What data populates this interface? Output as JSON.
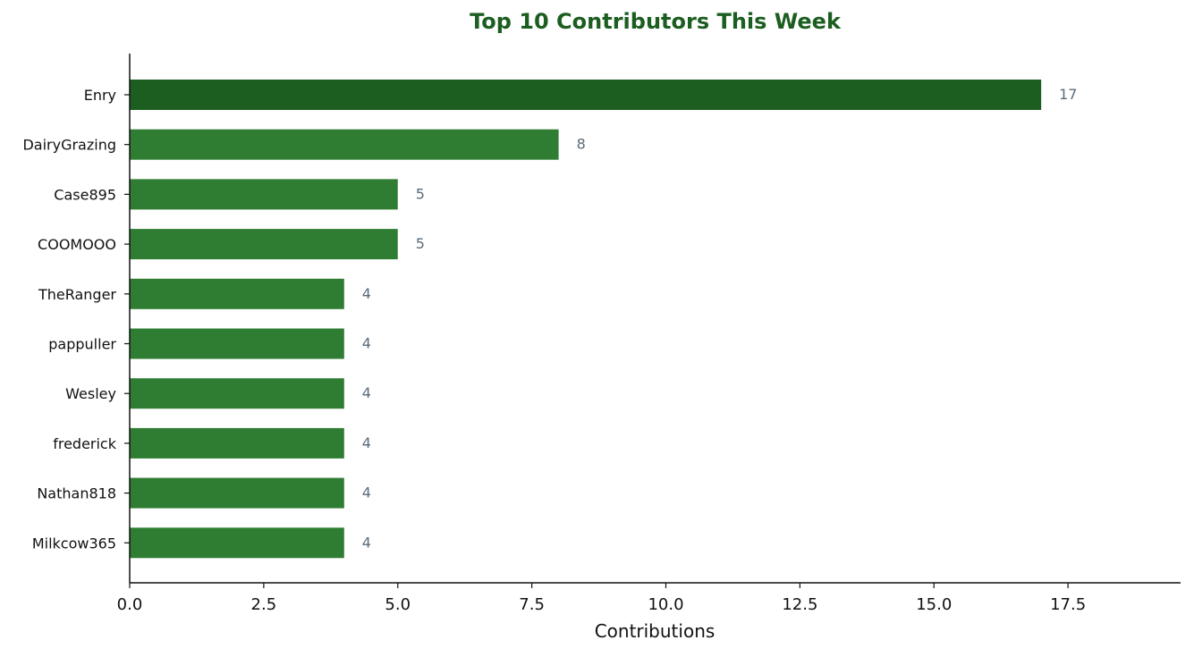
{
  "chart_data": {
    "type": "bar",
    "orientation": "horizontal",
    "title": "Top 10 Contributors This Week",
    "xlabel": "Contributions",
    "ylabel": "",
    "xlim": [
      0,
      19.6
    ],
    "xticks": [
      "0.0",
      "2.5",
      "5.0",
      "7.5",
      "10.0",
      "12.5",
      "15.0",
      "17.5"
    ],
    "xtick_values": [
      0,
      2.5,
      5,
      7.5,
      10,
      12.5,
      15,
      17.5
    ],
    "categories": [
      "Enry",
      "DairyGrazing",
      "Case895",
      "COOMOOO",
      "TheRanger",
      "pappuller",
      "Wesley",
      "frederick",
      "Nathan818",
      "Milkcow365"
    ],
    "values": [
      17,
      8,
      5,
      5,
      4,
      4,
      4,
      4,
      4,
      4
    ],
    "value_labels": [
      "17",
      "8",
      "5",
      "5",
      "4",
      "4",
      "4",
      "4",
      "4",
      "4"
    ],
    "grid": false,
    "legend": "none",
    "colors": {
      "top_bar": "#1b5e20",
      "bar": "#2e7d32",
      "title": "#1b5e20",
      "value_label": "#5a6b7b",
      "axis": "#111111"
    }
  }
}
